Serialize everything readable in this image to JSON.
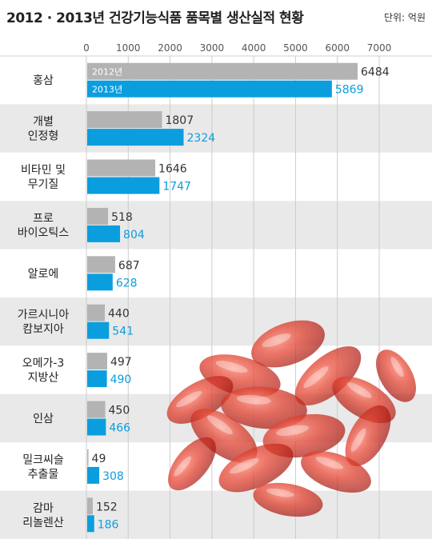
{
  "header": {
    "title": "2012 · 2013년 건강기능식품 품목별 생산실적 현황",
    "unit": "단위: 억원"
  },
  "chart_data": {
    "type": "bar",
    "orientation": "horizontal",
    "title": "2012 · 2013년 건강기능식품 품목별 생산실적 현황",
    "unit": "단위: 억원",
    "xlim": [
      0,
      7000
    ],
    "ticks": [
      "0",
      "1000",
      "2000",
      "3000",
      "4000",
      "5000",
      "6000",
      "7000"
    ],
    "categories": [
      [
        "홍삼"
      ],
      [
        "개별",
        "인정형"
      ],
      [
        "비타민 및",
        "무기질"
      ],
      [
        "프로",
        "바이오틱스"
      ],
      [
        "알로에"
      ],
      [
        "가르시니아",
        "캄보지아"
      ],
      [
        "오메가-3",
        "지방산"
      ],
      [
        "인삼"
      ],
      [
        "밀크씨슬",
        "추출물"
      ],
      [
        "감마",
        "리놀렌산"
      ]
    ],
    "series": [
      {
        "name": "2012년",
        "color": "#b3b3b3",
        "label_color": "#333333",
        "values": [
          6484,
          1807,
          1646,
          518,
          687,
          440,
          497,
          450,
          49,
          152
        ]
      },
      {
        "name": "2013년",
        "color": "#0a9ede",
        "label_color": "#0a9ede",
        "values": [
          5869,
          2324,
          1747,
          804,
          628,
          541,
          490,
          466,
          308,
          186
        ]
      }
    ],
    "grid": true,
    "legend": "inside first bar pair"
  }
}
